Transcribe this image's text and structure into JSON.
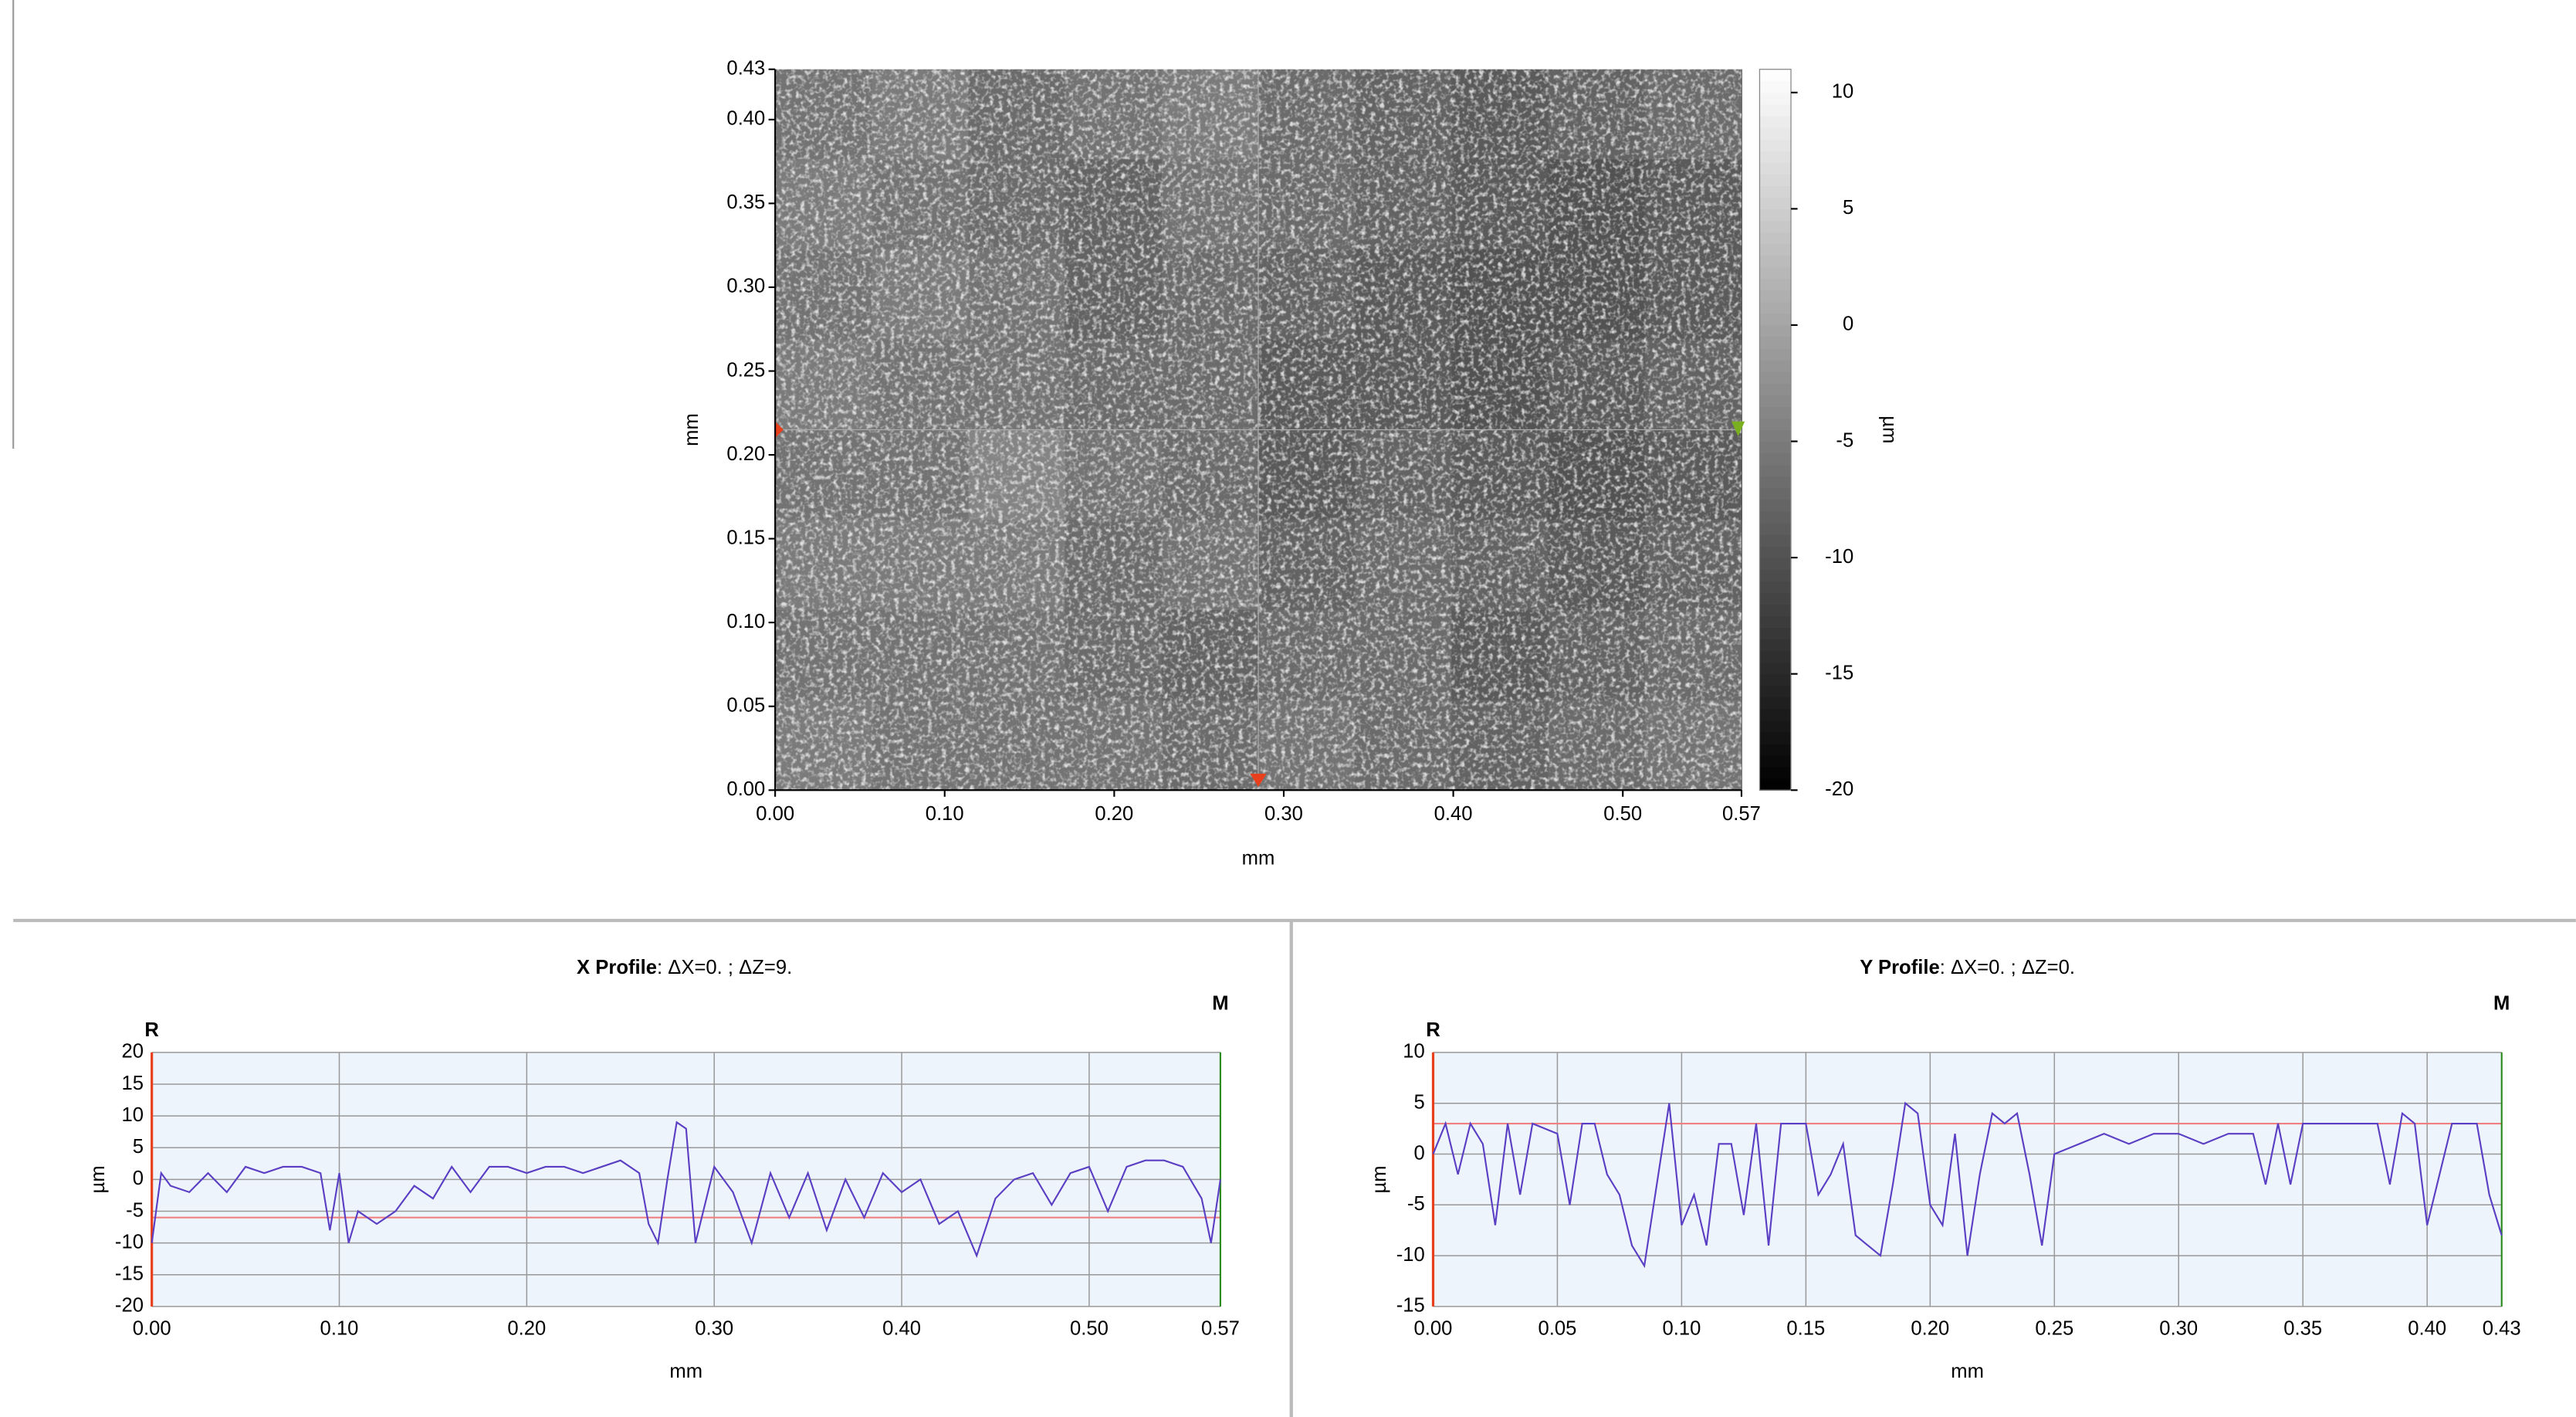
{
  "chart_data": [
    {
      "type": "heatmap",
      "xlabel": "mm",
      "ylabel": "mm",
      "zlabel": "µm",
      "xlim": [
        0,
        0.57
      ],
      "ylim": [
        0,
        0.43
      ],
      "xticks": [
        {
          "value": 0,
          "label": "0.00"
        },
        {
          "value": 0.1,
          "label": "0.10"
        },
        {
          "value": 0.2,
          "label": "0.20"
        },
        {
          "value": 0.3,
          "label": "0.30"
        },
        {
          "value": 0.4,
          "label": "0.40"
        },
        {
          "value": 0.5,
          "label": "0.50"
        },
        0.57
      ],
      "yticks": [
        {
          "value": 0,
          "label": "0.00"
        },
        {
          "value": 0.05,
          "label": "0.05"
        },
        {
          "value": 0.1,
          "label": "0.10"
        },
        {
          "value": 0.15,
          "label": "0.15"
        },
        {
          "value": 0.2,
          "label": "0.20"
        },
        {
          "value": 0.25,
          "label": "0.25"
        },
        {
          "value": 0.3,
          "label": "0.30"
        },
        {
          "value": 0.35,
          "label": "0.35"
        },
        {
          "value": 0.4,
          "label": "0.40"
        },
        0.43
      ],
      "zlim": [
        -20,
        11
      ],
      "zticks": [
        10,
        5,
        0,
        -5,
        -10,
        -15,
        -20
      ],
      "z": [
        [
          -6,
          -5,
          -7,
          -6,
          -5,
          -7,
          -8,
          -9,
          -8,
          -7
        ],
        [
          -5,
          -6,
          -7,
          -8,
          -6,
          -7,
          -8,
          -9,
          -10,
          -9
        ],
        [
          -6,
          -5,
          -6,
          -8,
          -7,
          -8,
          -9,
          -10,
          -10,
          -9
        ],
        [
          -5,
          -6,
          -6,
          -7,
          -7,
          -9,
          -9,
          -10,
          -9,
          -8
        ],
        [
          -6,
          -6,
          -4,
          -6,
          -7,
          -9,
          -8,
          -9,
          -10,
          -9
        ],
        [
          -5,
          -5,
          -5,
          -7,
          -6,
          -8,
          -7,
          -8,
          -9,
          -8
        ],
        [
          -6,
          -6,
          -6,
          -7,
          -8,
          -7,
          -7,
          -9,
          -8,
          -7
        ],
        [
          -5,
          -6,
          -6,
          -6,
          -7,
          -6,
          -7,
          -8,
          -7,
          -6
        ]
      ],
      "cursor": {
        "x": 0.285,
        "y": 0.215
      }
    },
    {
      "type": "line",
      "title": "X Profile",
      "subtitle": ": ΔX=0. ; ΔZ=9.",
      "xlabel": "mm",
      "ylabel": "µm",
      "markers": [
        {
          "label": "R",
          "color": "#e8401c"
        },
        {
          "label": "M",
          "color": "#2a8a1a"
        }
      ],
      "xlim": [
        0,
        0.57
      ],
      "ylim": [
        -20,
        20
      ],
      "xticks": [
        {
          "value": 0,
          "label": "0.00"
        },
        {
          "value": 0.1,
          "label": "0.10"
        },
        {
          "value": 0.2,
          "label": "0.20"
        },
        {
          "value": 0.3,
          "label": "0.30"
        },
        {
          "value": 0.4,
          "label": "0.40"
        },
        {
          "value": 0.5,
          "label": "0.50"
        },
        0.57
      ],
      "yticks": [
        -20,
        -15,
        -10,
        -5,
        0,
        5,
        10,
        15,
        20
      ],
      "reference_lines": [
        {
          "value": -6,
          "color": "#f08080"
        }
      ],
      "color": "#5a3fc4",
      "x": [
        0,
        0.005,
        0.01,
        0.02,
        0.03,
        0.04,
        0.05,
        0.06,
        0.07,
        0.08,
        0.09,
        0.095,
        0.1,
        0.105,
        0.11,
        0.12,
        0.13,
        0.14,
        0.15,
        0.16,
        0.17,
        0.18,
        0.19,
        0.2,
        0.21,
        0.22,
        0.23,
        0.24,
        0.25,
        0.26,
        0.265,
        0.27,
        0.275,
        0.28,
        0.285,
        0.29,
        0.3,
        0.31,
        0.32,
        0.33,
        0.34,
        0.35,
        0.36,
        0.37,
        0.38,
        0.39,
        0.4,
        0.41,
        0.42,
        0.43,
        0.44,
        0.45,
        0.46,
        0.47,
        0.48,
        0.49,
        0.5,
        0.51,
        0.52,
        0.53,
        0.54,
        0.55,
        0.56,
        0.565,
        0.57
      ],
      "values": [
        -10,
        1,
        -1,
        -2,
        1,
        -2,
        2,
        1,
        2,
        2,
        1,
        -8,
        1,
        -10,
        -5,
        -7,
        -5,
        -1,
        -3,
        2,
        -2,
        2,
        2,
        1,
        2,
        2,
        1,
        2,
        3,
        1,
        -7,
        -10,
        0,
        9,
        8,
        -10,
        2,
        -2,
        -10,
        1,
        -6,
        1,
        -8,
        0,
        -6,
        1,
        -2,
        0,
        -7,
        -5,
        -12,
        -3,
        0,
        1,
        -4,
        1,
        2,
        -5,
        2,
        3,
        3,
        2,
        -3,
        -10,
        0
      ]
    },
    {
      "type": "line",
      "title": "Y Profile",
      "subtitle": ": ΔX=0. ; ΔZ=0.",
      "xlabel": "mm",
      "ylabel": "µm",
      "markers": [
        {
          "label": "R",
          "color": "#e8401c"
        },
        {
          "label": "M",
          "color": "#2a8a1a"
        }
      ],
      "xlim": [
        0,
        0.43
      ],
      "ylim": [
        -15,
        10
      ],
      "xticks": [
        {
          "value": 0,
          "label": "0.00"
        },
        0.05,
        {
          "value": 0.1,
          "label": "0.10"
        },
        0.15,
        {
          "value": 0.2,
          "label": "0.20"
        },
        0.25,
        {
          "value": 0.3,
          "label": "0.30"
        },
        0.35,
        {
          "value": 0.4,
          "label": "0.40"
        },
        0.43
      ],
      "yticks": [
        -15,
        -10,
        -5,
        0,
        5,
        10
      ],
      "reference_lines": [
        {
          "value": 3,
          "color": "#f08080"
        }
      ],
      "color": "#5a3fc4",
      "x": [
        0,
        0.005,
        0.01,
        0.015,
        0.02,
        0.025,
        0.03,
        0.035,
        0.04,
        0.05,
        0.055,
        0.06,
        0.065,
        0.07,
        0.075,
        0.08,
        0.085,
        0.09,
        0.095,
        0.1,
        0.105,
        0.11,
        0.115,
        0.12,
        0.125,
        0.13,
        0.135,
        0.14,
        0.15,
        0.155,
        0.16,
        0.165,
        0.17,
        0.175,
        0.18,
        0.185,
        0.19,
        0.195,
        0.2,
        0.205,
        0.21,
        0.215,
        0.22,
        0.225,
        0.23,
        0.235,
        0.24,
        0.245,
        0.25,
        0.26,
        0.27,
        0.28,
        0.29,
        0.3,
        0.31,
        0.32,
        0.33,
        0.335,
        0.34,
        0.345,
        0.35,
        0.36,
        0.37,
        0.38,
        0.385,
        0.39,
        0.395,
        0.4,
        0.41,
        0.42,
        0.425,
        0.43
      ],
      "values": [
        0,
        3,
        -2,
        3,
        1,
        -7,
        3,
        -4,
        3,
        2,
        -5,
        3,
        3,
        -2,
        -4,
        -9,
        -11,
        -3,
        5,
        -7,
        -4,
        -9,
        1,
        1,
        -6,
        3,
        -9,
        3,
        3,
        -4,
        -2,
        1,
        -8,
        -9,
        -10,
        -3,
        5,
        4,
        -5,
        -7,
        2,
        -10,
        -2,
        4,
        3,
        4,
        -2,
        -9,
        0,
        1,
        2,
        1,
        2,
        2,
        1,
        2,
        2,
        -3,
        3,
        -3,
        3,
        3,
        3,
        3,
        -3,
        4,
        3,
        -7,
        3,
        3,
        -4,
        -8
      ]
    }
  ]
}
